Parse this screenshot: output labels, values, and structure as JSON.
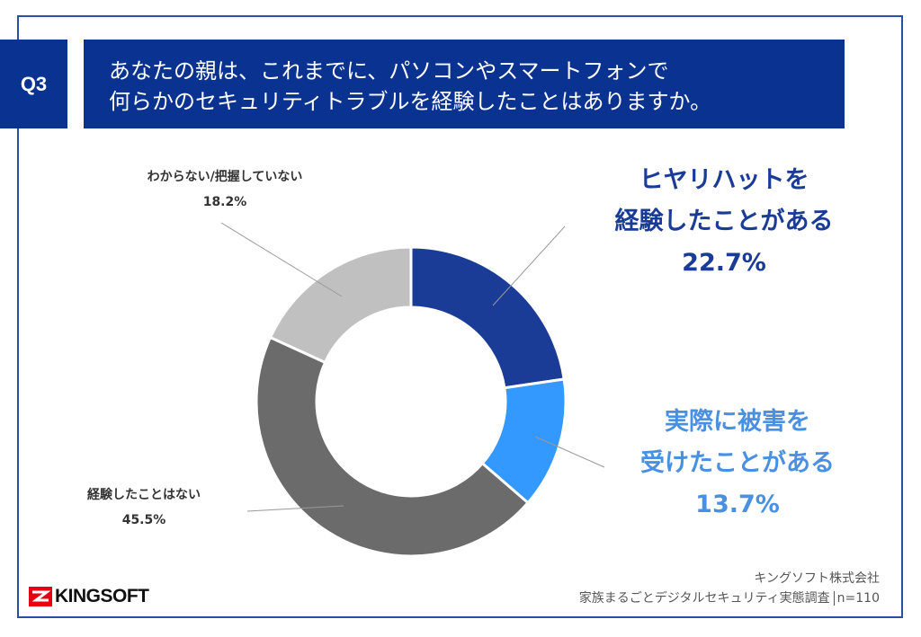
{
  "header": {
    "question_number": "Q3",
    "question_line1": "あなたの親は、これまでに、パソコンやスマートフォンで",
    "question_line2": "何らかのセキュリティトラブルを経験したことはありますか。"
  },
  "chart_data": {
    "type": "pie",
    "donut": true,
    "categories": [
      "ヒヤリハットを経験したことがある",
      "実際に被害を受けたことがある",
      "経験したことはない",
      "わからない/把握していない"
    ],
    "values": [
      22.7,
      13.7,
      45.5,
      18.2
    ],
    "colors": [
      "#1a3c96",
      "#3399ff",
      "#6b6b6b",
      "#c0c0c0"
    ],
    "labels": [
      {
        "line1": "ヒヤリハットを",
        "line2": "経験したことがある",
        "value": "22.7%",
        "color": "#1a3c96"
      },
      {
        "line1": "実際に被害を",
        "line2": "受けたことがある",
        "value": "13.7%",
        "color": "#4a90e2"
      },
      {
        "line1": "経験したことはない",
        "value": "45.5%"
      },
      {
        "line1": "わからない/把握していない",
        "value": "18.2%"
      }
    ]
  },
  "footer": {
    "company": "キングソフト株式会社",
    "survey": "家族まるごとデジタルセキュリティ実態調査",
    "sample": "n=110",
    "logo_text": "KINGSOFT"
  },
  "colors": {
    "brand": "#0a3290",
    "logo_red": "#e60012"
  }
}
